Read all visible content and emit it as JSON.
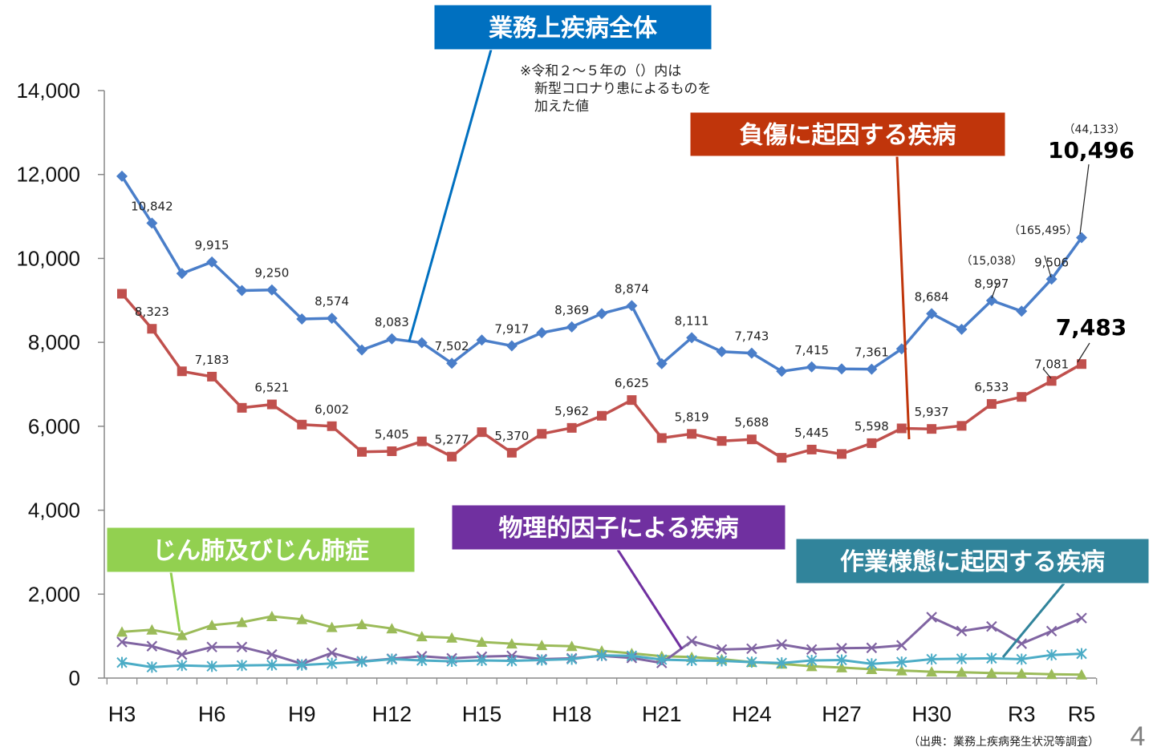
{
  "chart_data": {
    "type": "line",
    "categories": [
      "H3",
      "H4",
      "H5",
      "H6",
      "H7",
      "H8",
      "H9",
      "H10",
      "H11",
      "H12",
      "H13",
      "H14",
      "H15",
      "H16",
      "H17",
      "H18",
      "H19",
      "H20",
      "H21",
      "H22",
      "H23",
      "H24",
      "H25",
      "H26",
      "H27",
      "H28",
      "H29",
      "H30",
      "R1",
      "R2",
      "R3",
      "R4",
      "R5"
    ],
    "x_tick_labels": [
      "H3",
      "H6",
      "H9",
      "H12",
      "H15",
      "H18",
      "H21",
      "H24",
      "H27",
      "H30",
      "R3",
      "R5"
    ],
    "y_ticks": [
      "14,000",
      "12,000",
      "10,000",
      "8,000",
      "6,000",
      "4,000",
      "2,000",
      "0"
    ],
    "ylim": [
      0,
      14000
    ],
    "series": [
      {
        "name": "業務上疾病全体",
        "color": "#4a7ec9",
        "marker": "diamond",
        "values": [
          11958,
          10842,
          9640,
          9915,
          9235,
          9250,
          8557,
          8574,
          7820,
          8083,
          7990,
          7502,
          8055,
          7917,
          8230,
          8369,
          8684,
          8874,
          7491,
          8111,
          7779,
          7743,
          7310,
          7415,
          7368,
          7361,
          7844,
          8684,
          8310,
          8997,
          8742,
          9506,
          10496
        ],
        "labels": [
          "",
          "10,842",
          "",
          "9,915",
          "",
          "9,250",
          "",
          "8,574",
          "",
          "8,083",
          "",
          "7,502",
          "",
          "7,917",
          "",
          "8,369",
          "",
          "8,874",
          "",
          "8,111",
          "",
          "7,743",
          "",
          "7,415",
          "",
          "7,361",
          "",
          "8,684",
          "",
          "8,997",
          "",
          "9,506",
          "10,496"
        ]
      },
      {
        "name": "負傷に起因する疾病",
        "color": "#c0504d",
        "marker": "square",
        "values": [
          9158,
          8323,
          7310,
          7183,
          6440,
          6521,
          6040,
          6002,
          5390,
          5405,
          5640,
          5277,
          5860,
          5370,
          5820,
          5962,
          6250,
          6625,
          5720,
          5819,
          5650,
          5688,
          5250,
          5445,
          5340,
          5598,
          5950,
          5937,
          6010,
          6533,
          6700,
          7081,
          7483
        ],
        "labels": [
          "",
          "8,323",
          "",
          "7,183",
          "",
          "6,521",
          "",
          "6,002",
          "",
          "5,405",
          "",
          "5,277",
          "",
          "5,370",
          "",
          "5,962",
          "",
          "6,625",
          "",
          "5,819",
          "",
          "5,688",
          "",
          "5,445",
          "",
          "5,598",
          "",
          "5,937",
          "",
          "6,533",
          "",
          "7,081",
          "7,483"
        ]
      },
      {
        "name": "じん肺及びじん肺症",
        "color": "#9bbb59",
        "marker": "triangle",
        "values": [
          1100,
          1150,
          1020,
          1260,
          1330,
          1470,
          1400,
          1210,
          1280,
          1180,
          990,
          960,
          860,
          820,
          780,
          760,
          650,
          590,
          520,
          500,
          450,
          380,
          340,
          280,
          250,
          210,
          180,
          150,
          140,
          120,
          110,
          90,
          80
        ]
      },
      {
        "name": "物理的因子による疾病",
        "color": "#8064a2",
        "marker": "x",
        "values": [
          860,
          760,
          560,
          740,
          740,
          560,
          340,
          600,
          400,
          460,
          520,
          470,
          510,
          530,
          450,
          470,
          530,
          480,
          360,
          880,
          680,
          700,
          800,
          680,
          710,
          720,
          780,
          1450,
          1120,
          1230,
          820,
          1120,
          1430
        ]
      },
      {
        "name": "作業様態に起因する疾病",
        "color": "#4bacc6",
        "marker": "star",
        "values": [
          370,
          260,
          300,
          280,
          300,
          310,
          310,
          350,
          390,
          450,
          420,
          400,
          420,
          410,
          430,
          450,
          540,
          530,
          440,
          420,
          410,
          380,
          360,
          420,
          430,
          340,
          380,
          450,
          460,
          470,
          450,
          550,
          580
        ]
      }
    ],
    "parenthetical_labels": [
      {
        "category": "R3",
        "text": "（15,038）"
      },
      {
        "category": "R4",
        "text": "（165,495）"
      },
      {
        "category": "R5",
        "text": "（44,133）"
      }
    ],
    "note": [
      "※令和２～５年の（）内は",
      "新型コロナり患によるものを",
      "加えた値"
    ],
    "source": "（出典：業務上疾病発生状況等調査）",
    "page_number": "4",
    "callouts": [
      {
        "text": "業務上疾病全体",
        "color": "#0070c0"
      },
      {
        "text": "負傷に起因する疾病",
        "color": "#c0350b"
      },
      {
        "text": "じん肺及びじん肺症",
        "color": "#92d050"
      },
      {
        "text": "物理的因子による疾病",
        "color": "#7030a0"
      },
      {
        "text": "作業様態に起因する疾病",
        "color": "#31849b"
      }
    ]
  }
}
